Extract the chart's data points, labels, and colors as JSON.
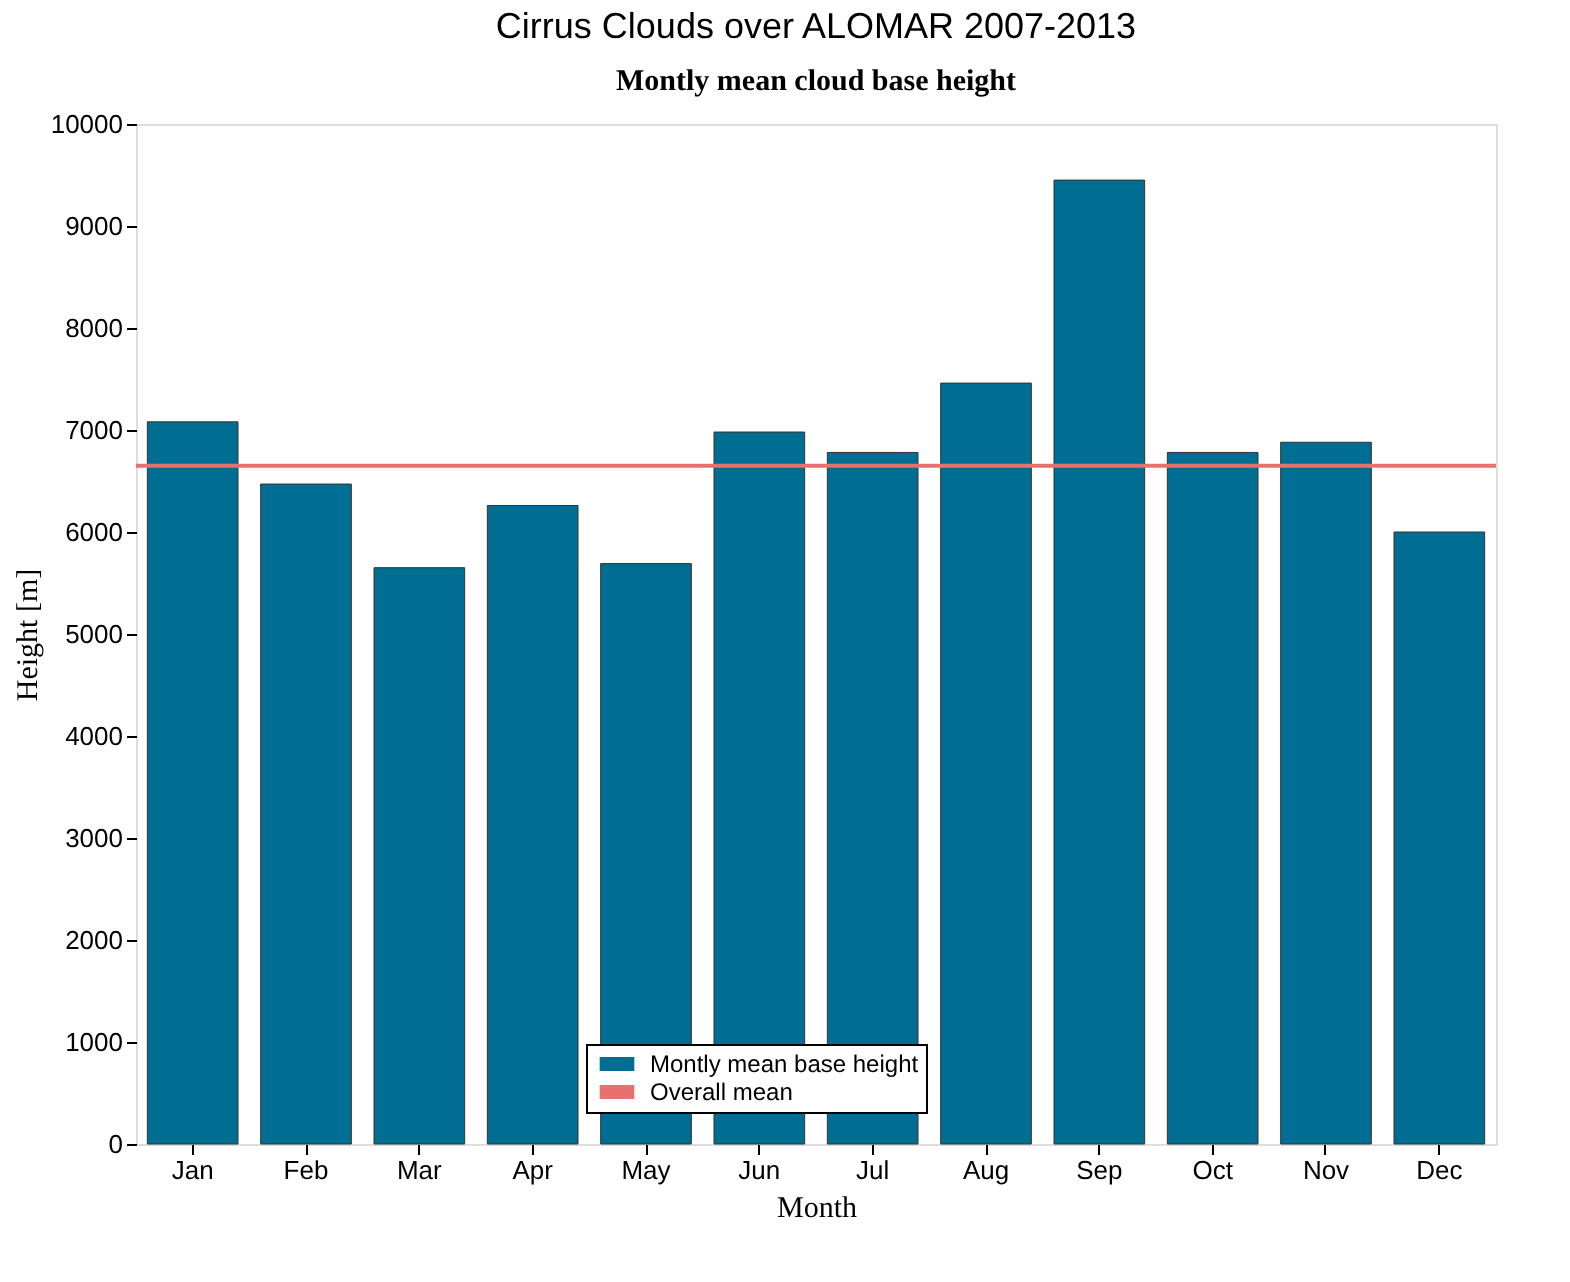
{
  "chart_data": {
    "type": "bar",
    "title": "Cirrus Clouds over ALOMAR 2007-2013",
    "subtitle": "Montly mean cloud base height",
    "xlabel": "Month",
    "ylabel": "Height [m]",
    "categories": [
      "Jan",
      "Feb",
      "Mar",
      "Apr",
      "May",
      "Jun",
      "Jul",
      "Aug",
      "Sep",
      "Oct",
      "Nov",
      "Dec"
    ],
    "series": [
      {
        "name": "Montly mean base height",
        "color": "#006e92",
        "values": [
          7080,
          6470,
          5650,
          6260,
          5690,
          6980,
          6780,
          7460,
          9450,
          6780,
          6880,
          6000
        ]
      }
    ],
    "ref_lines": [
      {
        "axis": "y",
        "value": 6650,
        "label": "Overall mean",
        "color": "#e8706f"
      }
    ],
    "ylim": [
      0,
      10000
    ],
    "yticks": [
      0,
      1000,
      2000,
      3000,
      4000,
      5000,
      6000,
      7000,
      8000,
      9000,
      10000
    ],
    "grid": false,
    "legend": "bottom"
  }
}
